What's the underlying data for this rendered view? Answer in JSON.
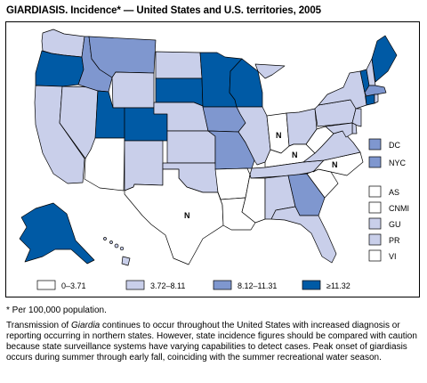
{
  "title": "GIARDIASIS. Incidence* — United States and U.S. territories, 2005",
  "colors": {
    "c0": "#ffffff",
    "c1": "#c9cfea",
    "c2": "#7f97cf",
    "c3": "#005aa5",
    "border": "#000000"
  },
  "legend": {
    "classes": [
      {
        "key": "c0",
        "label": "0–3.71"
      },
      {
        "key": "c1",
        "label": "3.72–8.11"
      },
      {
        "key": "c2",
        "label": "8.12–11.31"
      },
      {
        "key": "c3",
        "label": "≥11.32"
      }
    ]
  },
  "no_data_label": "N",
  "territories": [
    {
      "code": "DC",
      "class": "c2"
    },
    {
      "code": "NYC",
      "class": "c2"
    },
    {
      "code": "AS",
      "class": "c0"
    },
    {
      "code": "CNMI",
      "class": "c0"
    },
    {
      "code": "GU",
      "class": "c1"
    },
    {
      "code": "PR",
      "class": "c1"
    },
    {
      "code": "VI",
      "class": "c0"
    }
  ],
  "states": {
    "WA": "c1",
    "OR": "c3",
    "CA": "c1",
    "NV": "c1",
    "ID": "c2",
    "MT": "c2",
    "WY": "c1",
    "UT": "c3",
    "AZ": "c0",
    "CO": "c3",
    "NM": "c1",
    "ND": "c1",
    "SD": "c3",
    "NE": "c1",
    "KS": "c1",
    "OK": "c1",
    "TX": "N",
    "MN": "c3",
    "IA": "c2",
    "MO": "c2",
    "AR": "c0",
    "LA": "c0",
    "WI": "c3",
    "IL": "c1",
    "MI": "c1",
    "IN": "N",
    "OH": "c1",
    "KY": "N",
    "TN": "c1",
    "MS": "c0",
    "AL": "c1",
    "GA": "c2",
    "FL": "c1",
    "SC": "c0",
    "NC": "N",
    "VA": "c1",
    "WV": "c0",
    "PA": "c1",
    "NY": "c1",
    "VT": "c3",
    "NH": "c1",
    "ME": "c3",
    "MA": "c2",
    "CT": "c3",
    "RI": "c1",
    "NJ": "c1",
    "DE": "c1",
    "MD": "c1",
    "AK": "c3",
    "HI": "c1"
  },
  "footnote": "* Per 100,000 population.",
  "description": {
    "before": "Transmission of ",
    "italic": "Giardia",
    "after": " continues to occur throughout the United States with increased diagnosis or reporting occurring in northern states. However, state incidence figures should be compared with caution because state surveillance systems have varying capabilities to detect cases. Peak onset of giardiasis occurs during summer through early fall, coinciding with the summer recreational water season."
  }
}
